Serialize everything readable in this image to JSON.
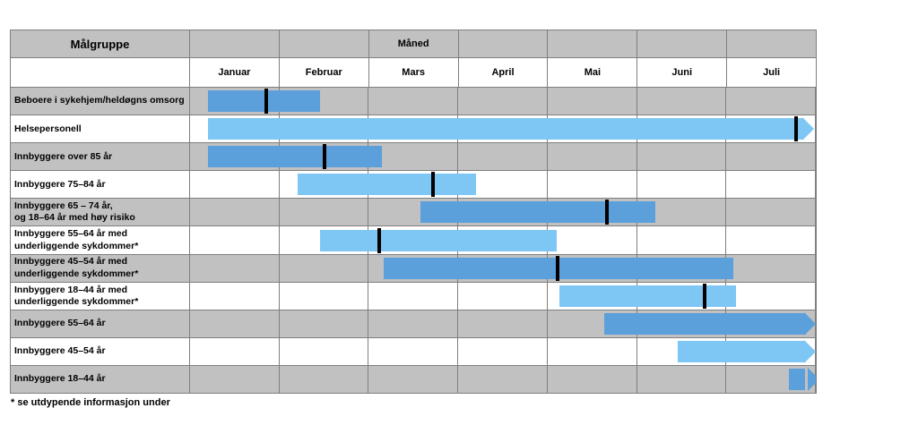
{
  "table": {
    "corner_header": "Målgruppe",
    "month_header": "Måned",
    "month_header_cell_index": 2,
    "months": [
      "Januar",
      "Februar",
      "Mars",
      "April",
      "Mai",
      "Juni",
      "Juli"
    ]
  },
  "footnote": "* se utdypende informasjon under",
  "colors": {
    "bar_dark": "#5b9fdb",
    "bar_light": "#7ec6f4",
    "row_gray": "#c1c1c1",
    "row_white": "#ffffff",
    "grid_line": "#7f7f7f",
    "milestone_tick": "#000000"
  },
  "chart_data": {
    "type": "bar",
    "subtype": "gantt-timeline",
    "title": "Måned",
    "x_axis": {
      "categories": [
        "Januar",
        "Februar",
        "Mars",
        "April",
        "Mai",
        "Juni",
        "Juli"
      ],
      "unit": "months, 0 = start of Januar, 7 = end of Juli"
    },
    "legend": "dark bars on gray rows, light bars on white rows; black tick = milestone; arrow = continues beyond Juli",
    "rows": [
      {
        "label": "Beboere i sykehjem/heldøgns omsorg",
        "start_month": 0.2,
        "end_month": 1.45,
        "milestone_month": 0.85,
        "arrow": false,
        "arrow_gap": false,
        "shade": "dark"
      },
      {
        "label": "Helsepersonell",
        "start_month": 0.2,
        "end_month": 6.85,
        "milestone_month": 6.78,
        "arrow": true,
        "arrow_gap": false,
        "shade": "light"
      },
      {
        "label": "Innbyggere over 85 år",
        "start_month": 0.2,
        "end_month": 2.15,
        "milestone_month": 1.5,
        "arrow": false,
        "arrow_gap": false,
        "shade": "dark"
      },
      {
        "label": "Innbyggere 75–84 år",
        "start_month": 1.2,
        "end_month": 3.2,
        "milestone_month": 2.72,
        "arrow": false,
        "arrow_gap": false,
        "shade": "light"
      },
      {
        "label": "Innbyggere 65 – 74 år,\nog 18–64 år med høy risiko",
        "start_month": 2.58,
        "end_month": 5.2,
        "milestone_month": 4.66,
        "arrow": false,
        "arrow_gap": false,
        "shade": "dark"
      },
      {
        "label": "Innbyggere 55–64 år med\nunderliggende sykdommer*",
        "start_month": 1.45,
        "end_month": 4.1,
        "milestone_month": 2.12,
        "arrow": false,
        "arrow_gap": false,
        "shade": "light"
      },
      {
        "label": "Innbyggere 45–54 år med\nunderliggende sykdommer*",
        "start_month": 2.17,
        "end_month": 6.08,
        "milestone_month": 4.11,
        "arrow": false,
        "arrow_gap": false,
        "shade": "dark"
      },
      {
        "label": "Innbyggere 18–44 år med\nunderliggende sykdommer*",
        "start_month": 4.13,
        "end_month": 6.11,
        "milestone_month": 5.76,
        "arrow": false,
        "arrow_gap": false,
        "shade": "light"
      },
      {
        "label": "Innbyggere 55–64 år",
        "start_month": 4.63,
        "end_month": 6.87,
        "milestone_month": null,
        "arrow": true,
        "arrow_gap": false,
        "shade": "dark"
      },
      {
        "label": "Innbyggere 45–54 år",
        "start_month": 5.46,
        "end_month": 6.87,
        "milestone_month": null,
        "arrow": true,
        "arrow_gap": false,
        "shade": "light"
      },
      {
        "label": "Innbyggere 18–44 år",
        "start_month": 6.7,
        "end_month": 6.88,
        "milestone_month": null,
        "arrow": true,
        "arrow_gap": true,
        "shade": "dark"
      }
    ]
  }
}
